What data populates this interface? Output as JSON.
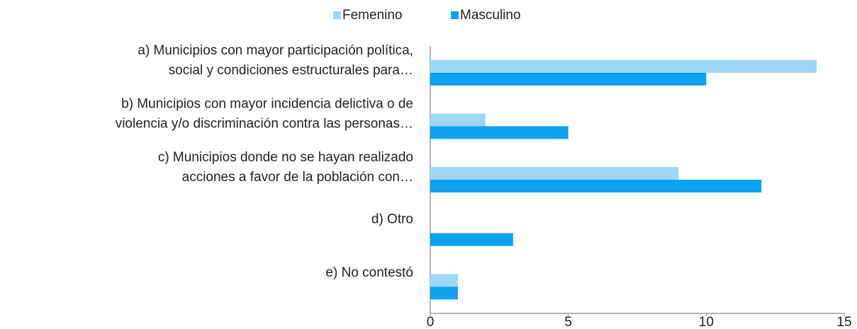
{
  "chart_data": {
    "type": "hbar",
    "categories": [
      [
        "a) Municipios con mayor participación política,",
        "social y condiciones estructurales para…"
      ],
      [
        "b) Municipios con mayor incidencia delictiva o de",
        "violencia y/o discriminación contra las personas…"
      ],
      [
        "c) Municipios donde no se hayan realizado",
        "acciones a favor de la población con…"
      ],
      [
        "d) Otro"
      ],
      [
        "e) No contestó"
      ]
    ],
    "series": [
      {
        "name": "Femenino",
        "color": "#9dd9f7",
        "values": [
          14,
          2,
          9,
          0,
          1
        ]
      },
      {
        "name": "Masculino",
        "color": "#0ba2ef",
        "values": [
          10,
          5,
          12,
          3,
          1
        ]
      }
    ],
    "xlim": [
      0,
      15
    ],
    "xticks": [
      0,
      5,
      10,
      15
    ],
    "legend": "top"
  }
}
